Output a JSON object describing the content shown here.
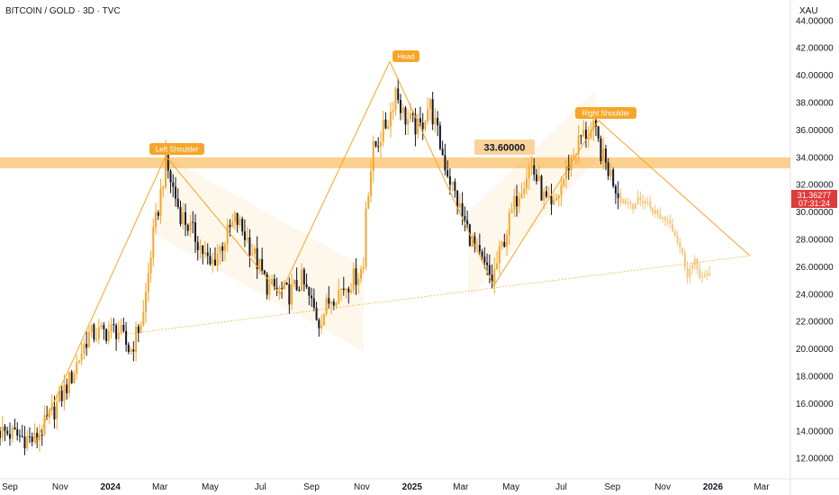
{
  "header": {
    "title": "BITCOIN / GOLD · 3D · TVC",
    "currency": "XAU"
  },
  "colors": {
    "up": "#f7a62a",
    "down": "#131722",
    "projection": "#f7c67b",
    "zone": "#f9c16a",
    "pattern": "#f5a623",
    "label_bg": "#f7a62a",
    "price_bg": "#e03b3b"
  },
  "last_price": {
    "value": "31.36277",
    "countdown": "07:31:24"
  },
  "level_box": {
    "label": "33.60000",
    "value": 33.6
  },
  "labels": {
    "left_shoulder": "Left Shoulder",
    "head": "Head",
    "right_shoulder": "Right Shoulder"
  },
  "chart_data": {
    "type": "candlestick",
    "title": "BITCOIN / GOLD · 3D · TVC",
    "ylabel": "XAU",
    "ylim": [
      10.5,
      45.5
    ],
    "xlim": [
      "2023-08-20",
      "2026-04-05"
    ],
    "y_ticks": [
      "12.00000",
      "14.00000",
      "16.00000",
      "18.00000",
      "20.00000",
      "22.00000",
      "24.00000",
      "26.00000",
      "28.00000",
      "30.00000",
      "32.00000",
      "34.00000",
      "36.00000",
      "38.00000",
      "40.00000",
      "42.00000",
      "44.00000"
    ],
    "x_ticks": [
      {
        "label": "Sep",
        "date": "2023-09-01",
        "bold": false
      },
      {
        "label": "Nov",
        "date": "2023-11-01",
        "bold": false
      },
      {
        "label": "2024",
        "date": "2024-01-01",
        "bold": true
      },
      {
        "label": "Mar",
        "date": "2024-03-01",
        "bold": false
      },
      {
        "label": "May",
        "date": "2024-05-01",
        "bold": false
      },
      {
        "label": "Jul",
        "date": "2024-07-01",
        "bold": false
      },
      {
        "label": "Sep",
        "date": "2024-09-01",
        "bold": false
      },
      {
        "label": "Nov",
        "date": "2024-11-01",
        "bold": false
      },
      {
        "label": "2025",
        "date": "2025-01-01",
        "bold": true
      },
      {
        "label": "Mar",
        "date": "2025-03-01",
        "bold": false
      },
      {
        "label": "May",
        "date": "2025-05-01",
        "bold": false
      },
      {
        "label": "Jul",
        "date": "2025-07-01",
        "bold": false
      },
      {
        "label": "Sep",
        "date": "2025-09-01",
        "bold": false
      },
      {
        "label": "Nov",
        "date": "2025-11-01",
        "bold": false
      },
      {
        "label": "2026",
        "date": "2026-01-01",
        "bold": true
      },
      {
        "label": "Mar",
        "date": "2026-03-01",
        "bold": false
      }
    ],
    "anchors": [
      {
        "date": "2023-08-20",
        "close": 14.0
      },
      {
        "date": "2023-10-01",
        "close": 13.3
      },
      {
        "date": "2023-10-20",
        "close": 15.0
      },
      {
        "date": "2023-11-15",
        "close": 18.0
      },
      {
        "date": "2023-12-05",
        "close": 21.0
      },
      {
        "date": "2024-01-10",
        "close": 21.4
      },
      {
        "date": "2024-01-25",
        "close": 19.8
      },
      {
        "date": "2024-02-10",
        "close": 22.5
      },
      {
        "date": "2024-02-20",
        "close": 27.5
      },
      {
        "date": "2024-03-01",
        "close": 31.0
      },
      {
        "date": "2024-03-08",
        "close": 33.6
      },
      {
        "date": "2024-03-25",
        "close": 30.0
      },
      {
        "date": "2024-04-15",
        "close": 28.0
      },
      {
        "date": "2024-05-01",
        "close": 26.0
      },
      {
        "date": "2024-06-01",
        "close": 29.5
      },
      {
        "date": "2024-06-15",
        "close": 28.0
      },
      {
        "date": "2024-07-10",
        "close": 24.5
      },
      {
        "date": "2024-08-05",
        "close": 24.0
      },
      {
        "date": "2024-08-20",
        "close": 25.0
      },
      {
        "date": "2024-09-10",
        "close": 22.0
      },
      {
        "date": "2024-09-25",
        "close": 23.8
      },
      {
        "date": "2024-10-20",
        "close": 25.0
      },
      {
        "date": "2024-11-03",
        "close": 26.0
      },
      {
        "date": "2024-11-06",
        "close": 30.5
      },
      {
        "date": "2024-11-15",
        "close": 34.5
      },
      {
        "date": "2024-12-05",
        "close": 37.0
      },
      {
        "date": "2024-12-12",
        "close": 39.0
      },
      {
        "date": "2024-12-22",
        "close": 37.0
      },
      {
        "date": "2025-01-10",
        "close": 36.0
      },
      {
        "date": "2025-01-22",
        "close": 38.0
      },
      {
        "date": "2025-02-10",
        "close": 33.5
      },
      {
        "date": "2025-03-01",
        "close": 30.0
      },
      {
        "date": "2025-03-20",
        "close": 27.0
      },
      {
        "date": "2025-04-08",
        "close": 25.0
      },
      {
        "date": "2025-04-25",
        "close": 28.5
      },
      {
        "date": "2025-05-10",
        "close": 31.5
      },
      {
        "date": "2025-05-25",
        "close": 33.5
      },
      {
        "date": "2025-06-10",
        "close": 31.0
      },
      {
        "date": "2025-06-20",
        "close": 30.0
      },
      {
        "date": "2025-07-10",
        "close": 33.5
      },
      {
        "date": "2025-07-25",
        "close": 35.5
      },
      {
        "date": "2025-08-10",
        "close": 36.0
      },
      {
        "date": "2025-08-20",
        "close": 34.0
      },
      {
        "date": "2025-09-01",
        "close": 32.5
      },
      {
        "date": "2025-09-08",
        "close": 31.4
      }
    ],
    "projection": [
      {
        "date": "2025-09-11",
        "close": 31.0
      },
      {
        "date": "2025-09-25",
        "close": 30.6
      },
      {
        "date": "2025-10-10",
        "close": 30.9
      },
      {
        "date": "2025-10-25",
        "close": 29.8
      },
      {
        "date": "2025-11-10",
        "close": 29.4
      },
      {
        "date": "2025-11-20",
        "close": 27.8
      },
      {
        "date": "2025-12-01",
        "close": 25.6
      },
      {
        "date": "2025-12-10",
        "close": 26.2
      },
      {
        "date": "2025-12-20",
        "close": 25.1
      },
      {
        "date": "2025-12-29",
        "close": 25.3
      }
    ],
    "resistance_zone": [
      33.2,
      34.0
    ],
    "neckline": [
      {
        "date": "2024-01-10",
        "value": 21.0
      },
      {
        "date": "2026-02-15",
        "value": 26.8
      }
    ],
    "pattern_points": {
      "left_shoulder": {
        "date": "2024-03-08",
        "value": 34.1
      },
      "head": {
        "date": "2024-12-05",
        "value": 41.0
      },
      "right_shoulder": {
        "date": "2025-08-15",
        "value": 36.7
      }
    }
  }
}
